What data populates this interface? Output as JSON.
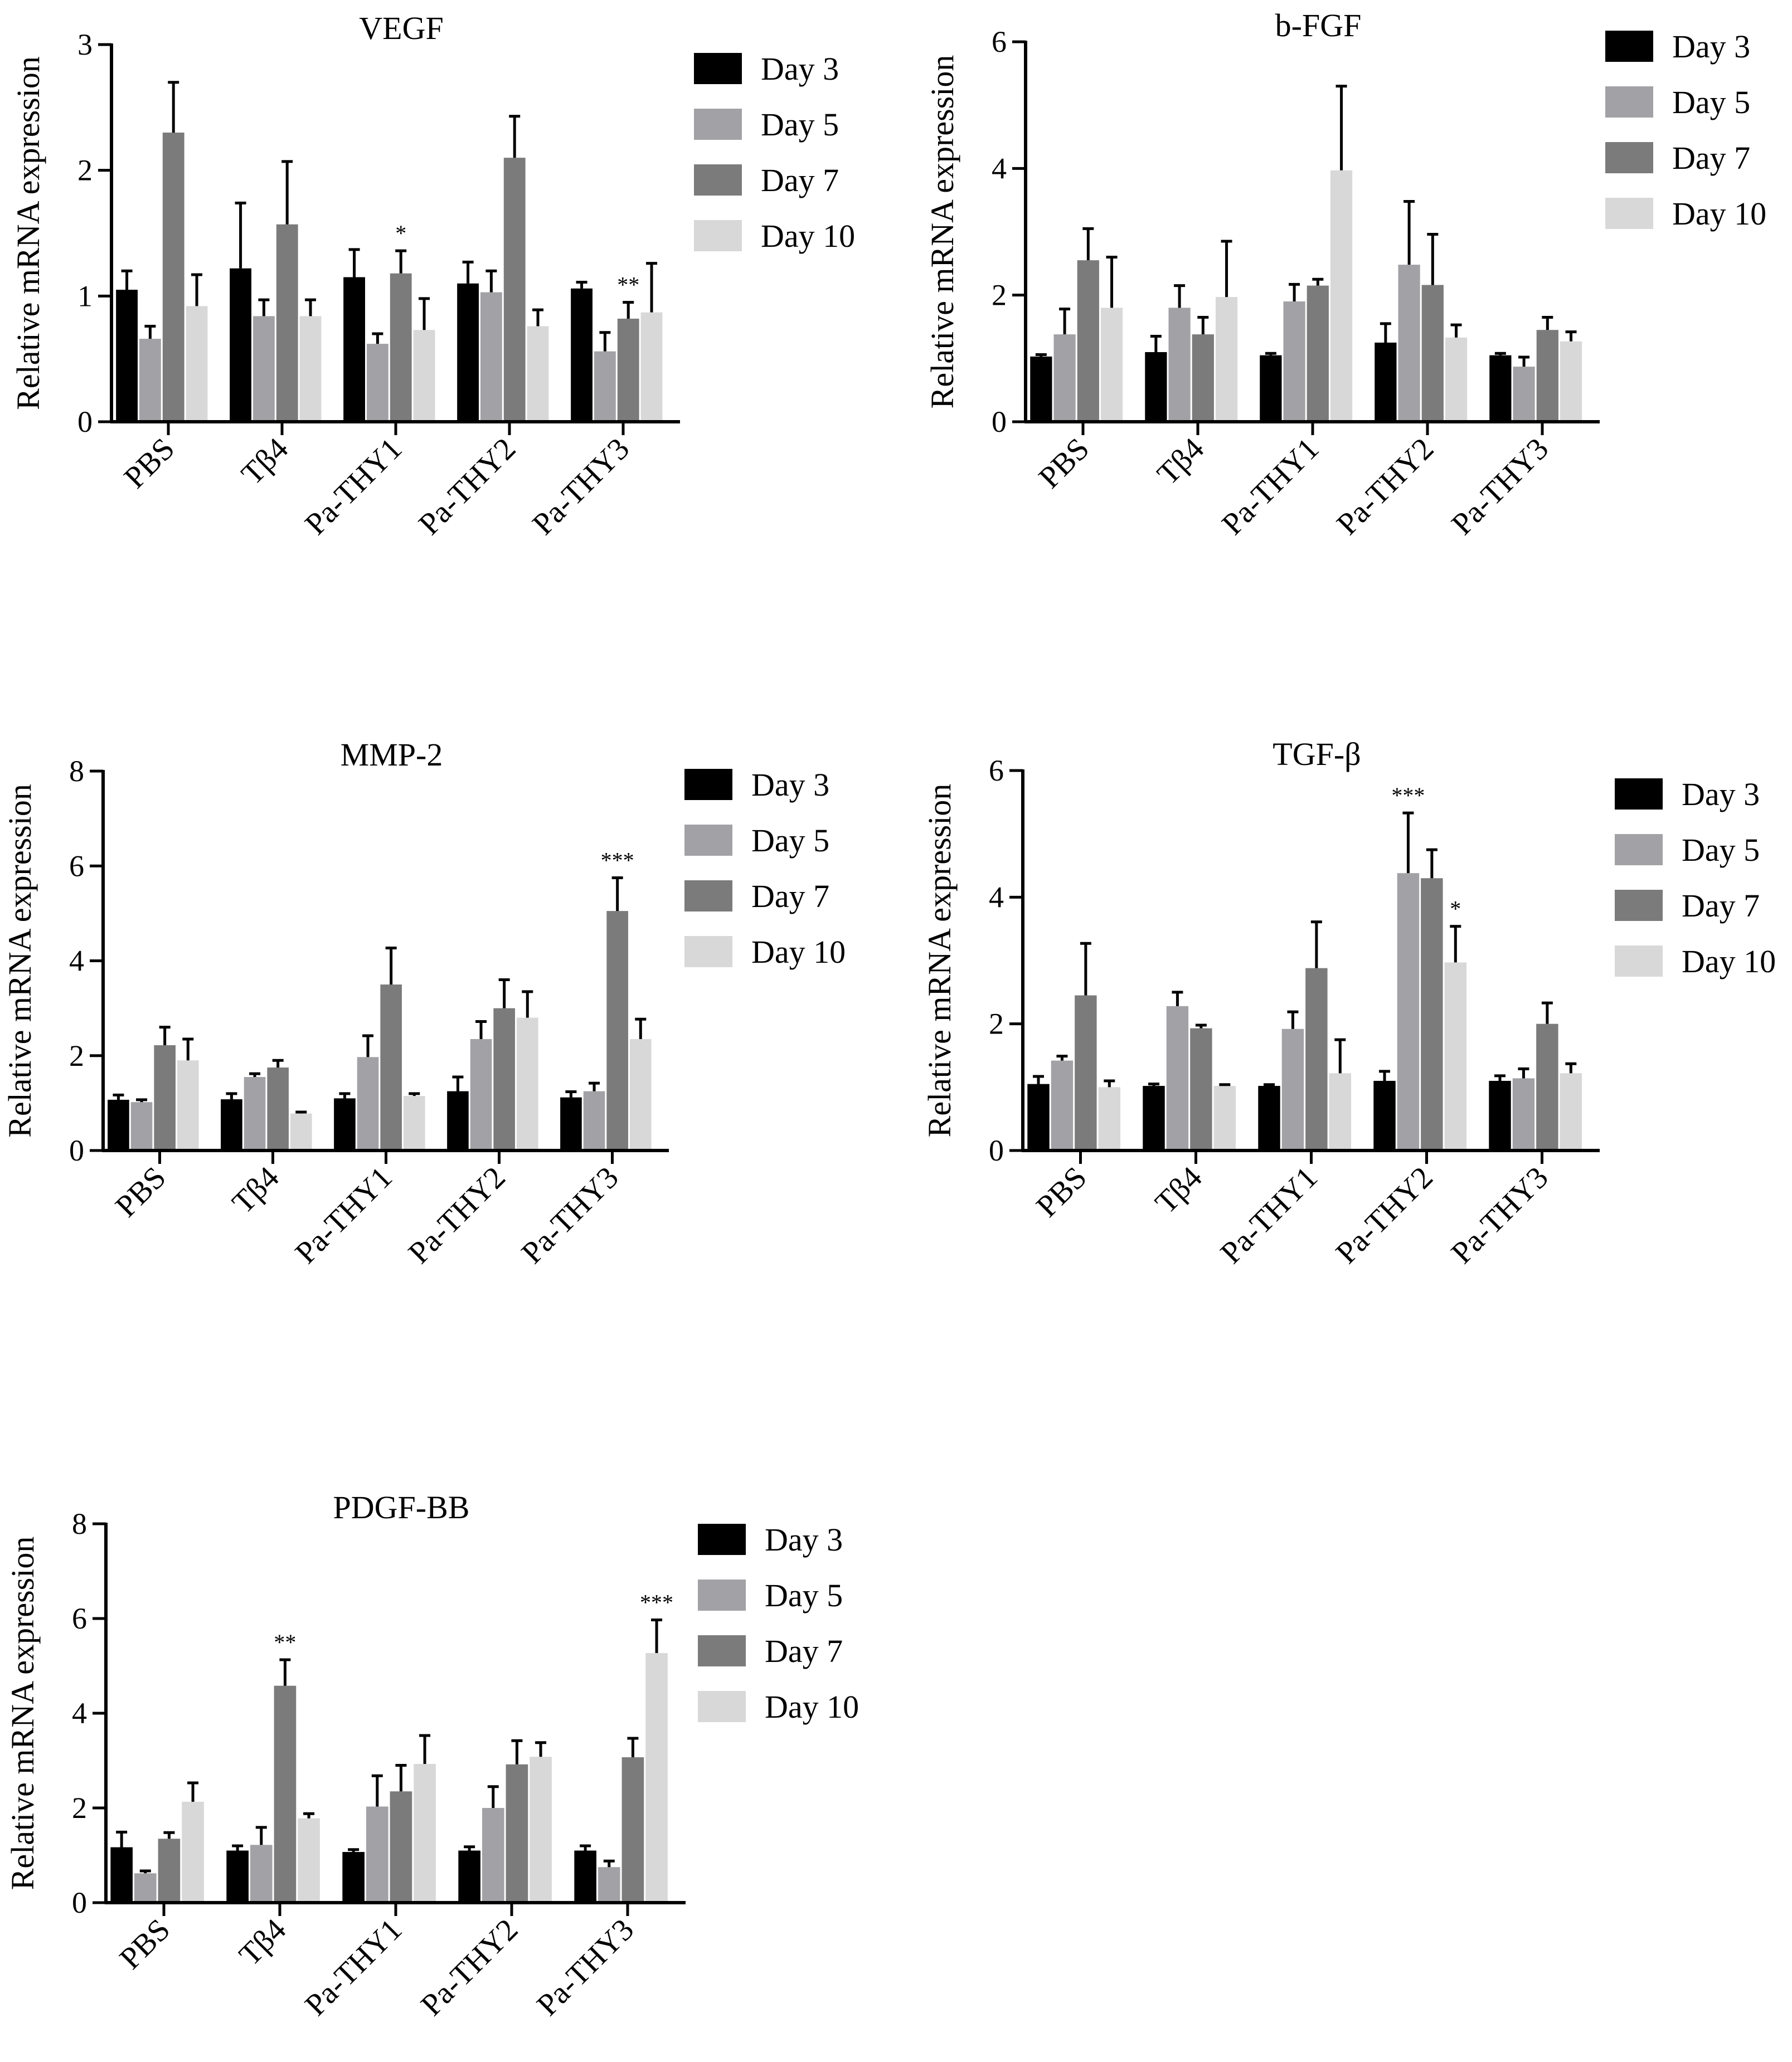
{
  "colors": {
    "Day 3": "#000000",
    "Day 5": "#a2a2a6",
    "Day 7": "#7b7b7b",
    "Day 10": "#d8d8d8"
  },
  "chart_data": [
    {
      "type": "bar",
      "title": "VEGF",
      "ylabel": "Relative mRNA expression",
      "xlabel": "",
      "ylim": [
        0,
        3
      ],
      "yticks": [
        0,
        1,
        2,
        3
      ],
      "categories": [
        "PBS",
        "Tβ4",
        "Pa-THY1",
        "Pa-THY2",
        "Pa-THY3"
      ],
      "series": [
        {
          "name": "Day 3",
          "values": [
            1.05,
            1.22,
            1.15,
            1.1,
            1.06
          ],
          "errors": [
            0.15,
            0.52,
            0.22,
            0.17,
            0.05
          ]
        },
        {
          "name": "Day 5",
          "values": [
            0.66,
            0.84,
            0.62,
            1.03,
            0.56
          ],
          "errors": [
            0.1,
            0.13,
            0.08,
            0.17,
            0.15
          ]
        },
        {
          "name": "Day 7",
          "values": [
            2.3,
            1.57,
            1.18,
            2.1,
            0.82
          ],
          "errors": [
            0.4,
            0.5,
            0.18,
            0.33,
            0.13
          ]
        },
        {
          "name": "Day 10",
          "values": [
            0.92,
            0.84,
            0.73,
            0.76,
            0.87
          ],
          "errors": [
            0.25,
            0.13,
            0.25,
            0.13,
            0.39
          ]
        }
      ],
      "annotations": [
        {
          "category": "Pa-THY1",
          "series": "Day 7",
          "text": "*"
        },
        {
          "category": "Pa-THY3",
          "series": "Day 7",
          "text": "**"
        }
      ]
    },
    {
      "type": "bar",
      "title": "b-FGF",
      "ylabel": "Relative mRNA expression",
      "xlabel": "",
      "ylim": [
        0,
        6
      ],
      "yticks": [
        0,
        2,
        4,
        6
      ],
      "categories": [
        "PBS",
        "Tβ4",
        "Pa-THY1",
        "Pa-THY2",
        "Pa-THY3"
      ],
      "series": [
        {
          "name": "Day 3",
          "values": [
            1.03,
            1.1,
            1.05,
            1.25,
            1.05
          ],
          "errors": [
            0.03,
            0.25,
            0.03,
            0.3,
            0.03
          ]
        },
        {
          "name": "Day 5",
          "values": [
            1.38,
            1.8,
            1.9,
            2.48,
            0.87
          ],
          "errors": [
            0.4,
            0.35,
            0.27,
            1.0,
            0.15
          ]
        },
        {
          "name": "Day 7",
          "values": [
            2.55,
            1.38,
            2.15,
            2.16,
            1.45
          ],
          "errors": [
            0.5,
            0.27,
            0.1,
            0.8,
            0.2
          ]
        },
        {
          "name": "Day 10",
          "values": [
            1.8,
            1.97,
            3.97,
            1.33,
            1.27
          ],
          "errors": [
            0.8,
            0.88,
            1.33,
            0.2,
            0.15
          ]
        }
      ],
      "annotations": []
    },
    {
      "type": "bar",
      "title": "MMP-2",
      "ylabel": "Relative mRNA expression",
      "xlabel": "",
      "ylim": [
        0,
        8
      ],
      "yticks": [
        0,
        2,
        4,
        6,
        8
      ],
      "categories": [
        "PBS",
        "Tβ4",
        "Pa-THY1",
        "Pa-THY2",
        "Pa-THY3"
      ],
      "series": [
        {
          "name": "Day 3",
          "values": [
            1.07,
            1.08,
            1.1,
            1.25,
            1.12
          ],
          "errors": [
            0.1,
            0.12,
            0.1,
            0.3,
            0.12
          ]
        },
        {
          "name": "Day 5",
          "values": [
            1.02,
            1.55,
            1.97,
            2.35,
            1.25
          ],
          "errors": [
            0.05,
            0.07,
            0.45,
            0.37,
            0.17
          ]
        },
        {
          "name": "Day 7",
          "values": [
            2.22,
            1.75,
            3.5,
            3.0,
            5.05
          ],
          "errors": [
            0.38,
            0.15,
            0.77,
            0.6,
            0.7
          ]
        },
        {
          "name": "Day 10",
          "values": [
            1.9,
            0.78,
            1.15,
            2.8,
            2.35
          ],
          "errors": [
            0.45,
            0.03,
            0.05,
            0.55,
            0.42
          ]
        }
      ],
      "annotations": [
        {
          "category": "Pa-THY3",
          "series": "Day 7",
          "text": "***"
        }
      ]
    },
    {
      "type": "bar",
      "title": "TGF-β",
      "ylabel": "Relative mRNA expression",
      "xlabel": "",
      "ylim": [
        0,
        6
      ],
      "yticks": [
        0,
        2,
        4,
        6
      ],
      "categories": [
        "PBS",
        "Tβ4",
        "Pa-THY1",
        "Pa-THY2",
        "Pa-THY3"
      ],
      "series": [
        {
          "name": "Day 3",
          "values": [
            1.05,
            1.02,
            1.02,
            1.1,
            1.1
          ],
          "errors": [
            0.12,
            0.03,
            0.02,
            0.15,
            0.08
          ]
        },
        {
          "name": "Day 5",
          "values": [
            1.42,
            2.28,
            1.92,
            4.38,
            1.14
          ],
          "errors": [
            0.07,
            0.22,
            0.27,
            0.95,
            0.15
          ]
        },
        {
          "name": "Day 7",
          "values": [
            2.45,
            1.93,
            2.88,
            4.3,
            2.0
          ],
          "errors": [
            0.82,
            0.05,
            0.73,
            0.45,
            0.33
          ]
        },
        {
          "name": "Day 10",
          "values": [
            1.0,
            1.02,
            1.22,
            2.97,
            1.22
          ],
          "errors": [
            0.1,
            0.02,
            0.53,
            0.57,
            0.15
          ]
        }
      ],
      "annotations": [
        {
          "category": "Pa-THY2",
          "series": "Day 5",
          "text": "***"
        },
        {
          "category": "Pa-THY2",
          "series": "Day 10",
          "text": "*"
        }
      ]
    },
    {
      "type": "bar",
      "title": "PDGF-BB",
      "ylabel": "Relative mRNA expression",
      "xlabel": "",
      "ylim": [
        0,
        8
      ],
      "yticks": [
        0,
        2,
        4,
        6,
        8
      ],
      "categories": [
        "PBS",
        "Tβ4",
        "Pa-THY1",
        "Pa-THY2",
        "Pa-THY3"
      ],
      "series": [
        {
          "name": "Day 3",
          "values": [
            1.17,
            1.1,
            1.07,
            1.1,
            1.1
          ],
          "errors": [
            0.32,
            0.1,
            0.05,
            0.08,
            0.1
          ]
        },
        {
          "name": "Day 5",
          "values": [
            0.62,
            1.22,
            2.03,
            2.0,
            0.75
          ],
          "errors": [
            0.05,
            0.37,
            0.65,
            0.45,
            0.13
          ]
        },
        {
          "name": "Day 7",
          "values": [
            1.35,
            4.58,
            2.35,
            2.92,
            3.07
          ],
          "errors": [
            0.13,
            0.55,
            0.55,
            0.5,
            0.4
          ]
        },
        {
          "name": "Day 10",
          "values": [
            2.13,
            1.78,
            2.93,
            3.08,
            5.27
          ],
          "errors": [
            0.4,
            0.1,
            0.6,
            0.3,
            0.7
          ]
        }
      ],
      "annotations": [
        {
          "category": "Tβ4",
          "series": "Day 7",
          "text": "**"
        },
        {
          "category": "Pa-THY3",
          "series": "Day 10",
          "text": "***"
        }
      ]
    }
  ]
}
